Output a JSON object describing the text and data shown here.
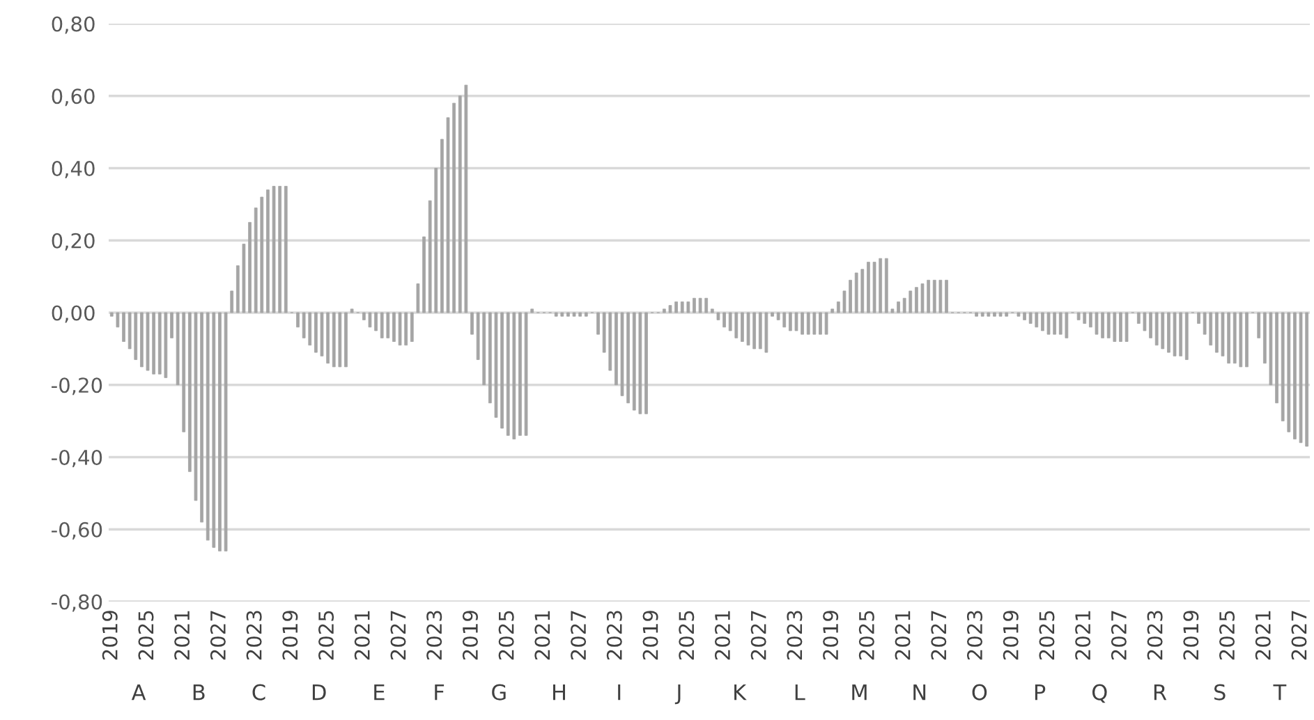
{
  "chart_data": {
    "type": "bar",
    "categories": [
      "2019",
      null,
      null,
      null,
      null,
      null,
      "2025",
      null,
      null,
      null,
      null,
      null,
      "2021",
      null,
      null,
      null,
      null,
      null,
      "2027",
      null,
      null,
      null,
      null,
      null,
      "2023",
      null,
      null,
      null,
      null,
      null,
      "2019",
      null,
      null,
      null,
      null,
      null,
      "2025",
      null,
      null,
      null,
      null,
      null,
      "2021",
      null,
      null,
      null,
      null,
      null,
      "2027",
      null,
      null,
      null,
      null,
      null,
      "2023",
      null,
      null,
      null,
      null,
      null,
      "2019",
      null,
      null,
      null,
      null,
      null,
      "2025",
      null,
      null,
      null,
      null,
      null,
      "2021",
      null,
      null,
      null,
      null,
      null,
      "2027",
      null,
      null,
      null,
      null,
      null,
      "2023",
      null,
      null,
      null,
      null,
      null,
      "2019",
      null,
      null,
      null,
      null,
      null,
      "2025",
      null,
      null,
      null,
      null,
      null,
      "2021",
      null,
      null,
      null,
      null,
      null,
      "2027",
      null,
      null,
      null,
      null,
      null,
      "2023",
      null,
      null,
      null,
      null,
      null,
      "2019",
      null,
      null,
      null,
      null,
      null,
      "2025",
      null,
      null,
      null,
      null,
      null,
      "2021",
      null,
      null,
      null,
      null,
      null,
      "2027",
      null,
      null,
      null,
      null,
      null,
      "2023",
      null,
      null,
      null,
      null,
      null,
      "2019",
      null,
      null,
      null,
      null,
      null,
      "2025",
      null,
      null,
      null,
      null,
      null,
      "2021",
      null,
      null,
      null,
      null,
      null,
      "2027",
      null,
      null,
      null,
      null,
      null,
      "2023",
      null,
      null,
      null,
      null,
      null,
      "2019",
      null,
      null,
      null,
      null,
      null,
      "2025",
      null,
      null,
      null,
      null,
      null,
      "2021",
      null,
      null,
      null,
      null,
      null,
      "2027",
      null
    ],
    "series": [
      {
        "color": "#a5a5a5",
        "values": [
          -0.01,
          -0.04,
          -0.08,
          -0.1,
          -0.13,
          -0.15,
          -0.16,
          -0.17,
          -0.17,
          -0.18,
          -0.07,
          -0.2,
          -0.33,
          -0.44,
          -0.52,
          -0.58,
          -0.63,
          -0.65,
          -0.66,
          -0.66,
          0.06,
          0.13,
          0.19,
          0.25,
          0.29,
          0.32,
          0.34,
          0.35,
          0.35,
          0.35,
          0,
          -0.04,
          -0.07,
          -0.09,
          -0.11,
          -0.12,
          -0.14,
          -0.15,
          -0.15,
          -0.15,
          0.01,
          0,
          -0.02,
          -0.04,
          -0.05,
          -0.07,
          -0.07,
          -0.08,
          -0.09,
          -0.09,
          -0.08,
          0.08,
          0.21,
          0.31,
          0.4,
          0.48,
          0.54,
          0.58,
          0.6,
          0.63,
          -0.06,
          -0.13,
          -0.2,
          -0.25,
          -0.29,
          -0.32,
          -0.34,
          -0.35,
          -0.34,
          -0.34,
          0.01,
          0,
          0,
          0,
          -0.01,
          -0.01,
          -0.01,
          -0.01,
          -0.01,
          -0.01,
          0,
          -0.06,
          -0.11,
          -0.16,
          -0.2,
          -0.23,
          -0.25,
          -0.27,
          -0.28,
          -0.28,
          0,
          0,
          0.01,
          0.02,
          0.03,
          0.03,
          0.03,
          0.04,
          0.04,
          0.04,
          0.01,
          -0.02,
          -0.04,
          -0.05,
          -0.07,
          -0.08,
          -0.09,
          -0.1,
          -0.1,
          -0.11,
          -0.01,
          -0.02,
          -0.04,
          -0.05,
          -0.05,
          -0.06,
          -0.06,
          -0.06,
          -0.06,
          -0.06,
          0.01,
          0.03,
          0.06,
          0.09,
          0.11,
          0.12,
          0.14,
          0.14,
          0.15,
          0.15,
          0.01,
          0.03,
          0.04,
          0.06,
          0.07,
          0.08,
          0.09,
          0.09,
          0.09,
          0.09,
          0,
          0,
          0,
          0,
          -0.01,
          -0.01,
          -0.01,
          -0.01,
          -0.01,
          -0.01,
          0,
          -0.01,
          -0.02,
          -0.03,
          -0.04,
          -0.05,
          -0.06,
          -0.06,
          -0.06,
          -0.07,
          0,
          -0.02,
          -0.03,
          -0.04,
          -0.06,
          -0.07,
          -0.07,
          -0.08,
          -0.08,
          -0.08,
          0,
          -0.03,
          -0.05,
          -0.07,
          -0.09,
          -0.1,
          -0.11,
          -0.12,
          -0.12,
          -0.13,
          0,
          -0.03,
          -0.06,
          -0.09,
          -0.11,
          -0.12,
          -0.14,
          -0.14,
          -0.15,
          -0.15,
          0,
          -0.07,
          -0.14,
          -0.2,
          -0.25,
          -0.3,
          -0.33,
          -0.35,
          -0.36,
          -0.37
        ]
      }
    ],
    "annotations": [
      "A",
      "B",
      "C",
      "D",
      "E",
      "F",
      "G",
      "H",
      "I",
      "J",
      "K",
      "L",
      "M",
      "N",
      "O",
      "P",
      "Q",
      "R",
      "S",
      "T"
    ],
    "ylim": [
      -0.8,
      0.8
    ],
    "yticks": [
      {
        "value": -0.8,
        "label": "-0,80"
      },
      {
        "value": -0.6,
        "label": "-0,60"
      },
      {
        "value": -0.4,
        "label": "-0,40"
      },
      {
        "value": -0.2,
        "label": "-0,20"
      },
      {
        "value": 0,
        "label": "0,00"
      },
      {
        "value": 0.2,
        "label": "0,20"
      },
      {
        "value": 0.4,
        "label": "0,40"
      },
      {
        "value": 0.6,
        "label": "0,60"
      },
      {
        "value": 0.8,
        "label": "0,80"
      }
    ],
    "grid": "y"
  }
}
